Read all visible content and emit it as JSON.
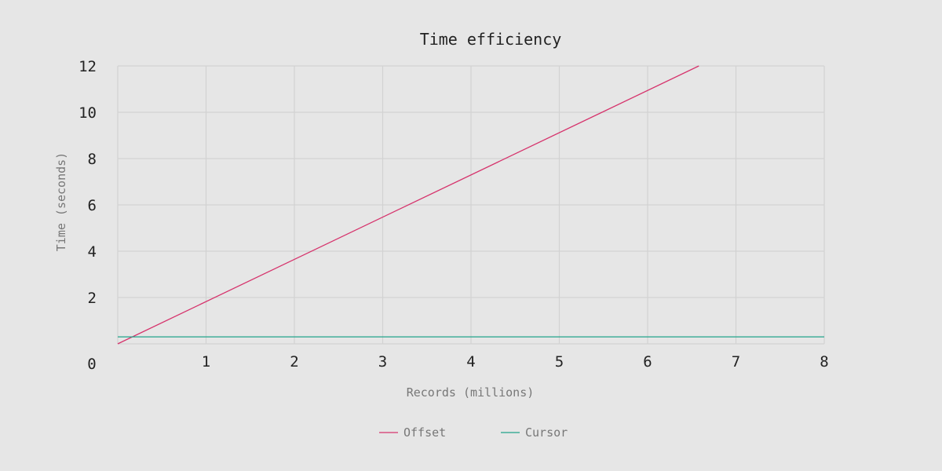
{
  "chart_data": {
    "type": "line",
    "title": "Time efficiency",
    "xlabel": "Records (millions)",
    "ylabel": "Time (seconds)",
    "xlim": [
      0,
      8
    ],
    "ylim": [
      0,
      12
    ],
    "xticks": [
      1,
      2,
      3,
      4,
      5,
      6,
      7,
      8
    ],
    "yticks": [
      2,
      4,
      6,
      8,
      10,
      12
    ],
    "x_tick_labels": [
      "1",
      "2",
      "3",
      "4",
      "5",
      "6",
      "7",
      "8"
    ],
    "y_tick_labels": [
      "2",
      "4",
      "6",
      "8",
      "10",
      "12"
    ],
    "origin_label": "0",
    "grid": true,
    "legend_position": "bottom-center",
    "series": [
      {
        "name": "Offset",
        "color": "#d6336c",
        "x": [
          0,
          6.58
        ],
        "y": [
          0,
          12
        ]
      },
      {
        "name": "Cursor",
        "color": "#20a48a",
        "x": [
          0,
          8
        ],
        "y": [
          0.3,
          0.3
        ]
      }
    ]
  }
}
